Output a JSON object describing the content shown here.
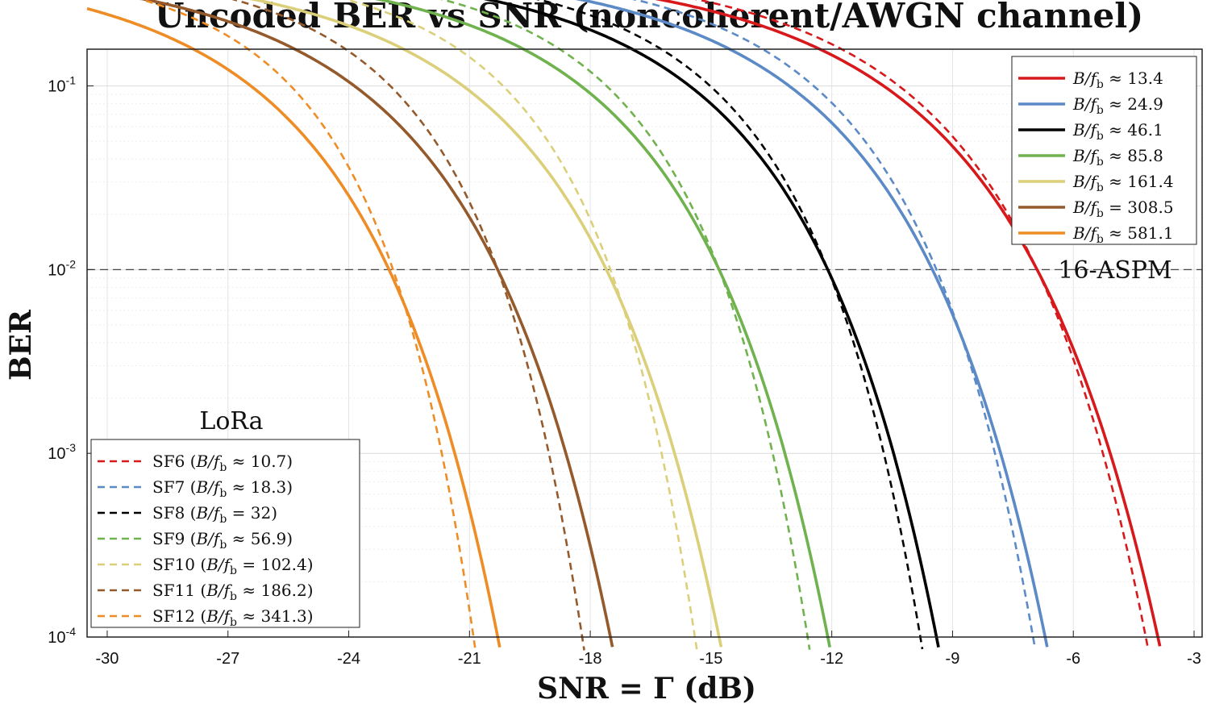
{
  "chart_data": {
    "type": "line",
    "title": "Uncoded BER vs SNR (noncoherent/AWGN channel)",
    "xlabel": "SNR = Γ (dB)",
    "ylabel": "BER",
    "xlim": [
      -30.5,
      -2.8
    ],
    "ylim_log10": [
      -4,
      -0.8
    ],
    "yscale": "log",
    "grid": true,
    "x_ticks": [
      -30,
      -27,
      -24,
      -21,
      -18,
      -15,
      -12,
      -9,
      -6,
      -3
    ],
    "x_tick_labels": [
      "-30",
      "-27",
      "-24",
      "-21",
      "-18",
      "-15",
      "-12",
      "-9",
      "-6",
      "-3"
    ],
    "y_ticks": [
      {
        "base": "10",
        "exp": "-1",
        "value": 0.1
      },
      {
        "base": "10",
        "exp": "-2",
        "value": 0.01
      },
      {
        "base": "10",
        "exp": "-3",
        "value": 0.001
      },
      {
        "base": "10",
        "exp": "-4",
        "value": 0.0001
      }
    ],
    "reference_line": {
      "value": 0.01,
      "style": "dashed",
      "color": "#444444"
    },
    "annotations": [
      "16-ASPM",
      "LoRa"
    ],
    "series": [
      {
        "name": "B/fb ≈ 13.4",
        "group": "16-ASPM",
        "style": "solid",
        "color": "#d7191c",
        "x_at_1e2": -6.9,
        "x_at_1e4": -3.9
      },
      {
        "name": "B/fb ≈ 24.9",
        "group": "16-ASPM",
        "style": "solid",
        "color": "#5b8ac6",
        "x_at_1e2": -9.5,
        "x_at_1e4": -6.7
      },
      {
        "name": "B/fb ≈ 46.1",
        "group": "16-ASPM",
        "style": "solid",
        "color": "#000000",
        "x_at_1e2": -12.1,
        "x_at_1e4": -9.4
      },
      {
        "name": "B/fb ≈ 85.8",
        "group": "16-ASPM",
        "style": "solid",
        "color": "#6fb24e",
        "x_at_1e2": -14.8,
        "x_at_1e4": -12.1
      },
      {
        "name": "B/fb ≈ 161.4",
        "group": "16-ASPM",
        "style": "solid",
        "color": "#dccf7a",
        "x_at_1e2": -17.6,
        "x_at_1e4": -14.8
      },
      {
        "name": "B/fb = 308.5",
        "group": "16-ASPM",
        "style": "solid",
        "color": "#955a2c",
        "x_at_1e2": -20.3,
        "x_at_1e4": -17.5
      },
      {
        "name": "B/fb ≈ 581.1",
        "group": "16-ASPM",
        "style": "solid",
        "color": "#ee8c25",
        "x_at_1e2": -23.0,
        "x_at_1e4": -20.3
      },
      {
        "name": "SF6 (B/fb ≈ 10.7)",
        "group": "LoRa",
        "style": "dashed",
        "color": "#d7191c",
        "x_at_1e2": -6.9,
        "x_at_1e4": -4.2
      },
      {
        "name": "SF7 (B/fb ≈ 18.3)",
        "group": "LoRa",
        "style": "dashed",
        "color": "#5b8ac6",
        "x_at_1e2": -9.4,
        "x_at_1e4": -7.0
      },
      {
        "name": "SF8 (B/fb = 32)",
        "group": "LoRa",
        "style": "dashed",
        "color": "#000000",
        "x_at_1e2": -12.1,
        "x_at_1e4": -9.8
      },
      {
        "name": "SF9 (B/fb ≈ 56.9)",
        "group": "LoRa",
        "style": "dashed",
        "color": "#6fb24e",
        "x_at_1e2": -14.8,
        "x_at_1e4": -12.6
      },
      {
        "name": "SF10 (B/fb = 102.4)",
        "group": "LoRa",
        "style": "dashed",
        "color": "#dccf7a",
        "x_at_1e2": -17.5,
        "x_at_1e4": -15.4
      },
      {
        "name": "SF11 (B/fb ≈ 186.2)",
        "group": "LoRa",
        "style": "dashed",
        "color": "#955a2c",
        "x_at_1e2": -20.3,
        "x_at_1e4": -18.2
      },
      {
        "name": "SF12 (B/fb ≈ 341.3)",
        "group": "LoRa",
        "style": "dashed",
        "color": "#ee8c25",
        "x_at_1e2": -22.9,
        "x_at_1e4": -20.9
      }
    ],
    "legends": {
      "aspm": [
        {
          "prefix": "B/",
          "sub": "b",
          "rel": "≈",
          "value": "13.4"
        },
        {
          "prefix": "B/",
          "sub": "b",
          "rel": "≈",
          "value": "24.9"
        },
        {
          "prefix": "B/",
          "sub": "b",
          "rel": "≈",
          "value": "46.1"
        },
        {
          "prefix": "B/",
          "sub": "b",
          "rel": "≈",
          "value": "85.8"
        },
        {
          "prefix": "B/",
          "sub": "b",
          "rel": "≈",
          "value": "161.4"
        },
        {
          "prefix": "B/",
          "sub": "b",
          "rel": "=",
          "value": "308.5"
        },
        {
          "prefix": "B/",
          "sub": "b",
          "rel": "≈",
          "value": "581.1"
        }
      ],
      "lora": [
        {
          "sf": "SF6",
          "rel": "≈",
          "value": "10.7"
        },
        {
          "sf": "SF7",
          "rel": "≈",
          "value": "18.3"
        },
        {
          "sf": "SF8",
          "rel": "=",
          "value": "32"
        },
        {
          "sf": "SF9",
          "rel": "≈",
          "value": "56.9"
        },
        {
          "sf": "SF10",
          "rel": "=",
          "value": "102.4"
        },
        {
          "sf": "SF11",
          "rel": "≈",
          "value": "186.2"
        },
        {
          "sf": "SF12",
          "rel": "≈",
          "value": "341.3"
        }
      ]
    }
  }
}
